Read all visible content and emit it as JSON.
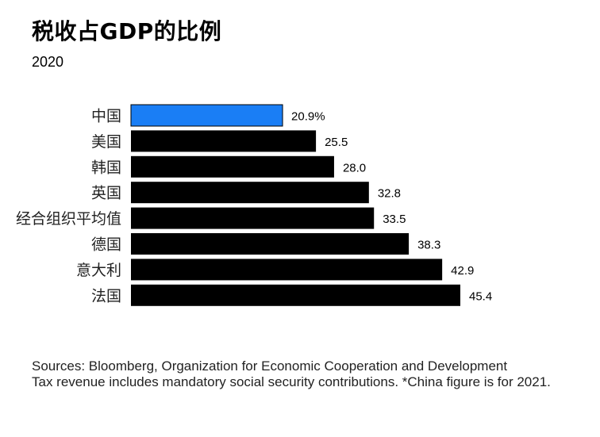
{
  "title": "税收占GDP的比例",
  "subtitle": "2020",
  "chart_data": {
    "type": "bar",
    "orientation": "horizontal",
    "categories": [
      "中国",
      "美国",
      "韩国",
      "英国",
      "经合组织平均值",
      "德国",
      "意大利",
      "法国"
    ],
    "values": [
      20.9,
      25.5,
      28.0,
      32.8,
      33.5,
      38.3,
      42.9,
      45.4
    ],
    "value_labels": [
      "20.9%",
      "25.5",
      "28.0",
      "32.8",
      "33.5",
      "38.3",
      "42.9",
      "45.4"
    ],
    "bar_colors": [
      "#1a7ef5",
      "#000000",
      "#000000",
      "#000000",
      "#000000",
      "#000000",
      "#000000",
      "#000000"
    ],
    "highlight_color": "#1a7ef5",
    "default_color": "#000000",
    "xlim": [
      0,
      45.4
    ],
    "grid": false,
    "axes_visible": false
  },
  "notes": {
    "sources": "Sources: Bloomberg, Organization for Economic Cooperation and Development",
    "footnote": "Tax revenue includes mandatory social security contributions. *China figure is for 2021."
  }
}
